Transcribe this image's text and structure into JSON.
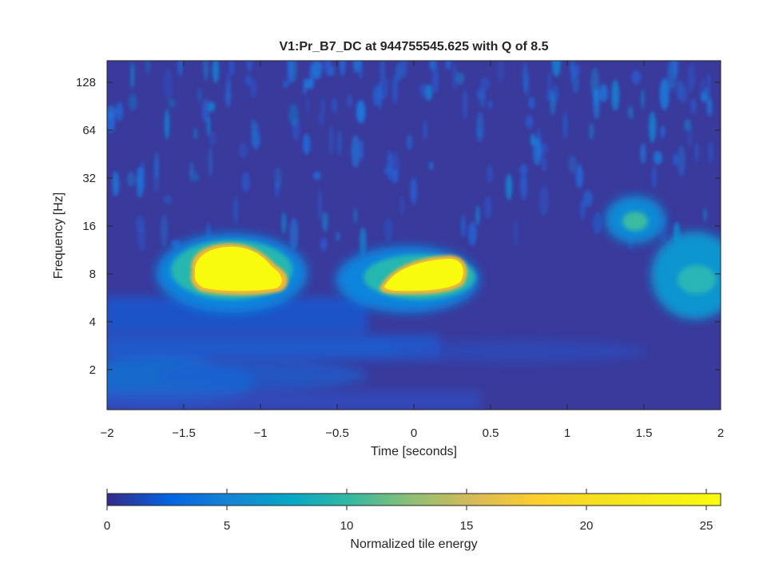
{
  "chart_data": {
    "type": "heatmap",
    "title": "V1:Pr_B7_DC at 944755545.625 with Q of 8.5",
    "xlabel": "Time [seconds]",
    "ylabel": "Frequency [Hz]",
    "xlim": [
      -2,
      2
    ],
    "ylim": [
      1.12,
      175
    ],
    "yscale": "log2",
    "x_ticks": [
      -2,
      -1.5,
      -1,
      -0.5,
      0,
      0.5,
      1,
      1.5,
      2
    ],
    "x_tick_labels": [
      "−2",
      "−1.5",
      "−1",
      "−0.5",
      "0",
      "0.5",
      "1",
      "1.5",
      "2"
    ],
    "y_ticks": [
      2,
      4,
      8,
      16,
      32,
      64,
      128
    ],
    "y_tick_labels": [
      "2",
      "4",
      "8",
      "16",
      "32",
      "64",
      "128"
    ],
    "colorbar": {
      "label": "Normalized tile energy",
      "range": [
        0,
        25.6
      ],
      "ticks": [
        0,
        5,
        10,
        15,
        20,
        25
      ],
      "tick_labels": [
        "0",
        "5",
        "10",
        "15",
        "20",
        "25"
      ],
      "colormap": "parula"
    },
    "features": [
      {
        "time": -1.18,
        "frequency": 8.5,
        "energy": 25.6
      },
      {
        "time": 0.05,
        "frequency": 7.7,
        "energy": 25.6
      },
      {
        "time": 1.42,
        "frequency": 17,
        "energy": 9
      },
      {
        "time": 1.85,
        "frequency": 7,
        "energy": 8
      }
    ]
  },
  "colors": {
    "background_low": "#352a87",
    "mid": "#0f8ad6",
    "high": "#f9fb0e"
  }
}
